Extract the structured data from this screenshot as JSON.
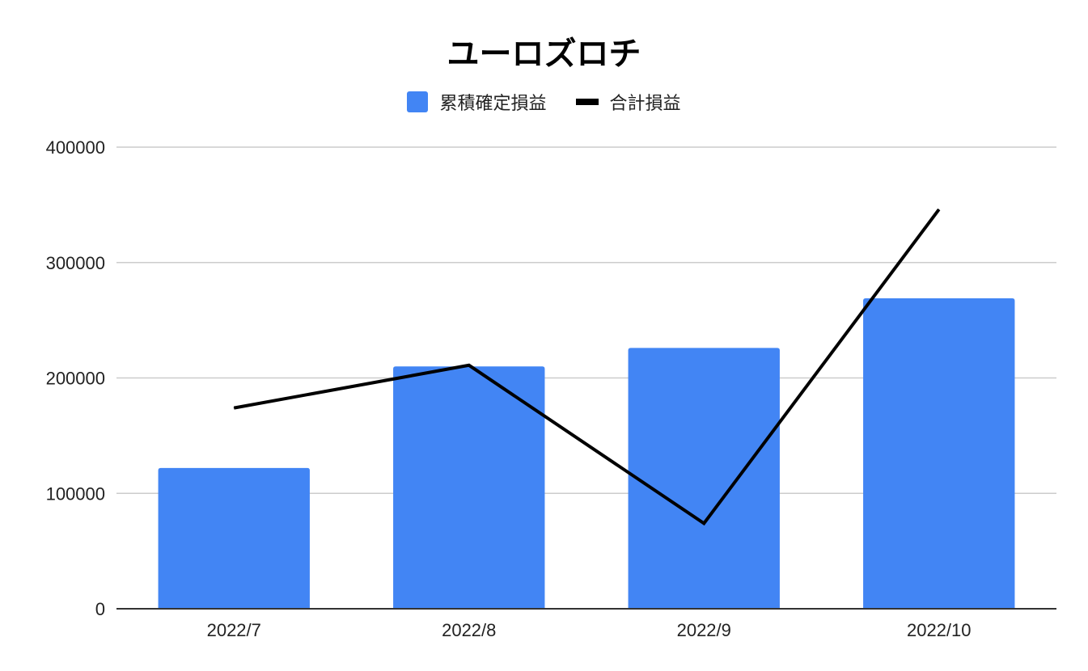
{
  "chart_data": {
    "type": "bar",
    "title": "ユーロズロチ",
    "categories": [
      "2022/7",
      "2022/8",
      "2022/9",
      "2022/10"
    ],
    "series": [
      {
        "name": "累積確定損益",
        "type": "bar",
        "color": "#4285f4",
        "values": [
          122000,
          210000,
          226000,
          269000
        ]
      },
      {
        "name": "合計損益",
        "type": "line",
        "color": "#000000",
        "values": [
          174000,
          211000,
          74000,
          346000
        ]
      }
    ],
    "yticks": [
      "0",
      "100000",
      "200000",
      "300000",
      "400000"
    ],
    "ylim": [
      0,
      400000
    ],
    "xlabel": "",
    "ylabel": "",
    "grid": true,
    "legend_position": "top"
  }
}
